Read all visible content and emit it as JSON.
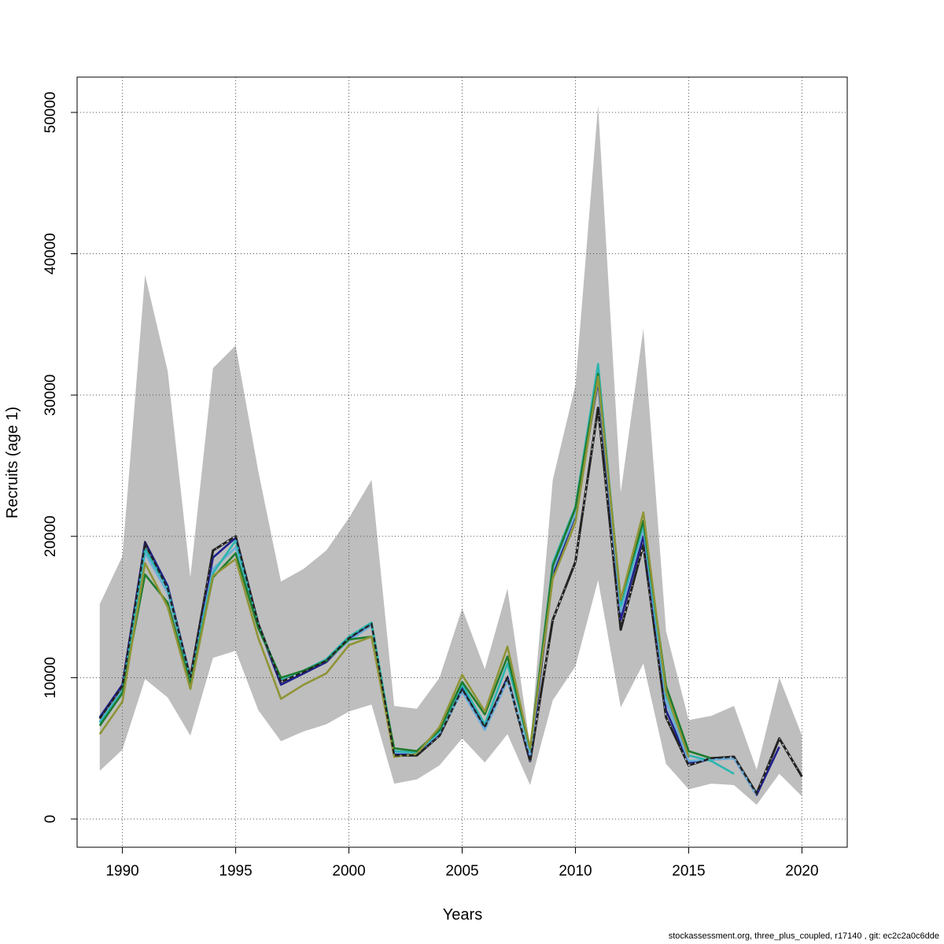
{
  "chart_data": {
    "type": "line",
    "xlabel": "Years",
    "ylabel": "Recruits (age 1)",
    "xlim": [
      1988,
      2022
    ],
    "ylim": [
      -2000,
      52500
    ],
    "x_ticks": [
      1990,
      1995,
      2000,
      2005,
      2010,
      2015,
      2020
    ],
    "y_ticks": [
      0,
      10000,
      20000,
      30000,
      40000,
      50000
    ],
    "grid": true,
    "band": {
      "x": [
        1989,
        1990,
        1991,
        1992,
        1993,
        1994,
        1995,
        1996,
        1997,
        1998,
        1999,
        2000,
        2001,
        2002,
        2003,
        2004,
        2005,
        2006,
        2007,
        2008,
        2009,
        2010,
        2011,
        2012,
        2013,
        2014,
        2015,
        2016,
        2017,
        2018,
        2019,
        2020
      ],
      "upper": [
        15200,
        18600,
        38500,
        31700,
        17100,
        31900,
        33500,
        24600,
        16800,
        17700,
        19000,
        21300,
        24000,
        8000,
        7800,
        10000,
        14900,
        10600,
        16300,
        5200,
        24000,
        30700,
        50500,
        23100,
        34700,
        13300,
        7000,
        7300,
        8000,
        3500,
        10000,
        5900
      ],
      "lower": [
        3400,
        4900,
        9900,
        8600,
        5900,
        11400,
        11900,
        7700,
        5500,
        6200,
        6700,
        7600,
        8100,
        2500,
        2800,
        3800,
        5700,
        4000,
        6000,
        2400,
        8400,
        10800,
        16900,
        7900,
        11000,
        3900,
        2100,
        2500,
        2400,
        1000,
        3200,
        1600
      ],
      "color": "#bebebe"
    },
    "series": [
      {
        "color": "#222222",
        "dashed": true,
        "x": [
          1989,
          1990,
          1991,
          1992,
          1993,
          1994,
          1995,
          1996,
          1997,
          1998,
          1999,
          2000,
          2001,
          2002,
          2003,
          2004,
          2005,
          2006,
          2007,
          2008,
          2009,
          2010,
          2011,
          2012,
          2013,
          2014,
          2015,
          2016,
          2017,
          2018,
          2019,
          2020
        ],
        "values": [
          7100,
          9400,
          19500,
          16300,
          10000,
          19000,
          20000,
          13800,
          9700,
          10400,
          11200,
          12800,
          13800,
          4500,
          4500,
          5900,
          9200,
          6500,
          10000,
          4100,
          14100,
          18200,
          29100,
          13400,
          19400,
          7200,
          3800,
          4300,
          4400,
          1800,
          5700,
          3000
        ]
      },
      {
        "color": "#1f1f8c",
        "dashed": false,
        "x": [
          1989,
          1990,
          1991,
          1992,
          1993,
          1994,
          1995,
          1996,
          1997,
          1998,
          1999,
          2000,
          2001,
          2002,
          2003,
          2004,
          2005,
          2006,
          2007,
          2008,
          2009,
          2010,
          2011,
          2012,
          2013,
          2014,
          2015,
          2016,
          2017,
          2018,
          2019
        ],
        "values": [
          7200,
          9500,
          19600,
          16500,
          10000,
          18500,
          19900,
          13700,
          9500,
          10300,
          11100,
          12700,
          13800,
          4600,
          4600,
          6000,
          9300,
          6500,
          10000,
          4200,
          17300,
          21500,
          31000,
          14100,
          20000,
          7700,
          4000,
          4200,
          4300,
          1700,
          5100
        ]
      },
      {
        "color": "#6baed6",
        "dashed": false,
        "x": [
          1989,
          1990,
          1991,
          1992,
          1993,
          1994,
          1995,
          1996,
          1997,
          1998,
          1999,
          2000,
          2001,
          2002,
          2003,
          2004,
          2005,
          2006,
          2007,
          2008,
          2009,
          2010,
          2011,
          2012,
          2013,
          2014,
          2015,
          2016,
          2017,
          2018
        ],
        "values": [
          6900,
          9100,
          18800,
          16000,
          9900,
          17700,
          19200,
          13500,
          9900,
          10500,
          11200,
          12600,
          13700,
          4700,
          4700,
          6100,
          9000,
          6300,
          9800,
          4500,
          17600,
          21600,
          31200,
          14700,
          20600,
          8300,
          4100,
          4200,
          4300,
          1700
        ]
      },
      {
        "color": "#2bb5b0",
        "dashed": false,
        "x": [
          1989,
          1990,
          1991,
          1992,
          1993,
          1994,
          1995,
          1996,
          1997,
          1998,
          1999,
          2000,
          2001,
          2002,
          2003,
          2004,
          2005,
          2006,
          2007,
          2008,
          2009,
          2010,
          2011,
          2012,
          2013,
          2014,
          2015,
          2016,
          2017
        ],
        "values": [
          6800,
          9000,
          19100,
          16300,
          9900,
          17400,
          19700,
          13700,
          9900,
          10500,
          11300,
          12900,
          13900,
          4800,
          4700,
          6200,
          9500,
          6700,
          11000,
          4900,
          18100,
          22100,
          32200,
          15100,
          20900,
          8800,
          4500,
          4100,
          3200
        ]
      },
      {
        "color": "#1e7b2e",
        "dashed": false,
        "x": [
          1989,
          1990,
          1991,
          1992,
          1993,
          1994,
          1995,
          1996,
          1997,
          1998,
          1999,
          2000,
          2001,
          2002,
          2003,
          2004,
          2005,
          2006,
          2007,
          2008,
          2009,
          2010,
          2011,
          2012,
          2013,
          2014,
          2015,
          2016
        ],
        "values": [
          6600,
          8900,
          17300,
          15300,
          9500,
          17100,
          18800,
          13500,
          10000,
          10500,
          11200,
          12700,
          12900,
          5000,
          4800,
          6300,
          9700,
          7400,
          11500,
          5000,
          17900,
          22000,
          31500,
          15500,
          21100,
          9400,
          4800,
          4300
        ]
      },
      {
        "color": "#8f9436",
        "dashed": false,
        "x": [
          1989,
          1990,
          1991,
          1992,
          1993,
          1994,
          1995,
          1996,
          1997,
          1998,
          1999,
          2000,
          2001,
          2002,
          2003,
          2004,
          2005,
          2006,
          2007,
          2008,
          2009,
          2010,
          2011,
          2012,
          2013,
          2014,
          2015
        ],
        "values": [
          6000,
          8300,
          18100,
          15000,
          9200,
          17200,
          18400,
          12800,
          8500,
          9500,
          10300,
          12300,
          12900,
          4400,
          4600,
          6500,
          10200,
          7600,
          12200,
          5000,
          17000,
          21000,
          31300,
          15500,
          21700,
          9000,
          4400
        ]
      }
    ]
  },
  "footer": "stockassessment.org, three_plus_coupled, r17140 , git: ec2c2a0c6dde"
}
